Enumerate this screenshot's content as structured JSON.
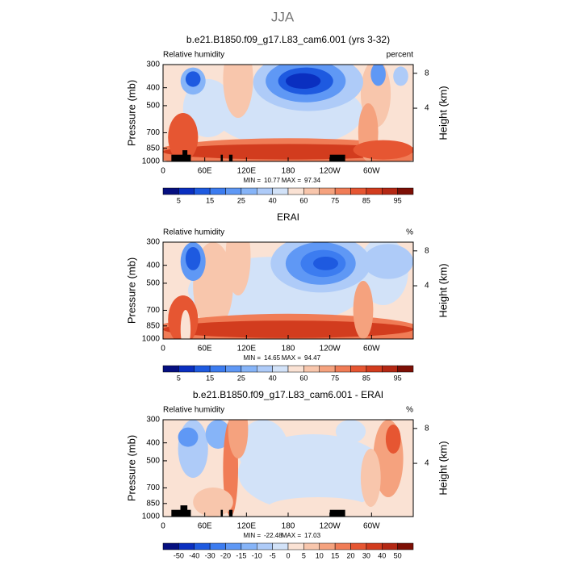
{
  "title": "JJA",
  "chart_data": [
    {
      "type": "contour",
      "title": "b.e21.B1850.f09_g17.L83_cam6.001 (yrs 3-32)",
      "left_string": "Relative humidity",
      "right_string": "percent",
      "ylabel": "Pressure (mb)",
      "y2label": "Height (km)",
      "xlim": [
        0,
        360
      ],
      "xticks": [
        0,
        {
          "value": 60,
          "label": "60E"
        },
        {
          "value": 120,
          "label": "120E"
        },
        180,
        {
          "value": 240,
          "label": "120W"
        },
        {
          "value": 300,
          "label": "60W"
        }
      ],
      "ylim": [
        1000,
        300
      ],
      "ylog": true,
      "yticks": [
        300,
        400,
        500,
        700,
        850,
        1000
      ],
      "y2lim": [
        -2.1,
        9
      ],
      "y2ticks": [
        4,
        8
      ],
      "min_label": "MIN =",
      "min": 10.77,
      "max_label": "MAX =",
      "max": 97.34,
      "levels": [
        5,
        10,
        15,
        20,
        25,
        30,
        40,
        50,
        60,
        70,
        75,
        80,
        85,
        90,
        95
      ],
      "colorbar_ticks": [
        5,
        15,
        25,
        40,
        60,
        75,
        85,
        95
      ],
      "colors": [
        "#050f80",
        "#0a2fc0",
        "#1e5ae0",
        "#3c7cf0",
        "#5f98f5",
        "#86b4f8",
        "#aecbf8",
        "#d2e2f8",
        "#fae2d4",
        "#f8c6ac",
        "#f5a27e",
        "#f07c56",
        "#e65632",
        "#d23c1e",
        "#b42814",
        "#7d0f05"
      ]
    },
    {
      "type": "contour",
      "title": "ERAI",
      "left_string": "Relative humidity",
      "right_string": "%",
      "ylabel": "Pressure (mb)",
      "y2label": "Height (km)",
      "xlim": [
        0,
        360
      ],
      "xticks": [
        0,
        {
          "value": 60,
          "label": "60E"
        },
        {
          "value": 120,
          "label": "120E"
        },
        180,
        {
          "value": 240,
          "label": "120W"
        },
        {
          "value": 300,
          "label": "60W"
        }
      ],
      "ylim": [
        1000,
        300
      ],
      "ylog": true,
      "yticks": [
        300,
        400,
        500,
        700,
        850,
        1000
      ],
      "y2lim": [
        -2.1,
        9
      ],
      "y2ticks": [
        4,
        8
      ],
      "min_label": "MIN =",
      "min": 14.65,
      "max_label": "MAX =",
      "max": 94.47,
      "levels": [
        5,
        10,
        15,
        20,
        25,
        30,
        40,
        50,
        60,
        70,
        75,
        80,
        85,
        90,
        95
      ],
      "colorbar_ticks": [
        5,
        15,
        25,
        40,
        60,
        75,
        85,
        95
      ],
      "colors": [
        "#050f80",
        "#0a2fc0",
        "#1e5ae0",
        "#3c7cf0",
        "#5f98f5",
        "#86b4f8",
        "#aecbf8",
        "#d2e2f8",
        "#fae2d4",
        "#f8c6ac",
        "#f5a27e",
        "#f07c56",
        "#e65632",
        "#d23c1e",
        "#b42814",
        "#7d0f05"
      ]
    },
    {
      "type": "contour",
      "title": "b.e21.B1850.f09_g17.L83_cam6.001 - ERAI",
      "left_string": "Relative humidity",
      "right_string": "%",
      "ylabel": "Pressure (mb)",
      "y2label": "Height (km)",
      "xlim": [
        0,
        360
      ],
      "xticks": [
        0,
        {
          "value": 60,
          "label": "60E"
        },
        {
          "value": 120,
          "label": "120E"
        },
        180,
        {
          "value": 240,
          "label": "120W"
        },
        {
          "value": 300,
          "label": "60W"
        }
      ],
      "ylim": [
        1000,
        300
      ],
      "ylog": true,
      "yticks": [
        300,
        400,
        500,
        700,
        850,
        1000
      ],
      "y2lim": [
        -2.1,
        9
      ],
      "y2ticks": [
        4,
        8
      ],
      "min_label": "MIN =",
      "min": -22.48,
      "max_label": "MAX =",
      "max": 17.03,
      "levels": [
        -50,
        -40,
        -30,
        -20,
        -15,
        -10,
        -5,
        0,
        5,
        10,
        15,
        20,
        30,
        40,
        50
      ],
      "colorbar_ticks": [
        -50,
        -40,
        -30,
        -20,
        -15,
        -10,
        -5,
        0,
        5,
        10,
        15,
        20,
        30,
        40,
        50
      ],
      "colors": [
        "#050f80",
        "#0a2fc0",
        "#1e5ae0",
        "#3c7cf0",
        "#5f98f5",
        "#86b4f8",
        "#aecbf8",
        "#d2e2f8",
        "#fae2d4",
        "#f8c6ac",
        "#f5a27e",
        "#f07c56",
        "#e65632",
        "#d23c1e",
        "#b42814",
        "#7d0f05"
      ]
    }
  ]
}
